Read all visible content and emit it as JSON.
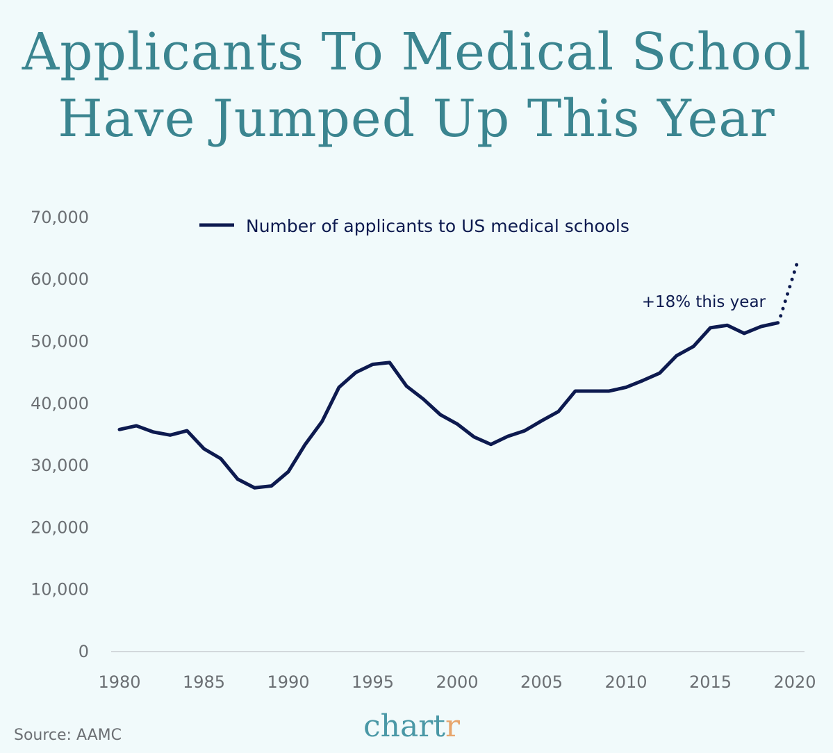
{
  "title_line1": "Applicants To Medical School",
  "title_line2": "Have Jumped Up This Year",
  "source": "Source: AAMC",
  "logo": {
    "main": "chart",
    "accent": "r"
  },
  "chart_data": {
    "type": "line",
    "title": "Applicants To Medical School Have Jumped Up This Year",
    "xlabel": "",
    "ylabel": "",
    "xlim": [
      1980,
      2020
    ],
    "ylim": [
      0,
      70000
    ],
    "x_ticks": [
      "1980",
      "1985",
      "1990",
      "1995",
      "2000",
      "2005",
      "2010",
      "2015",
      "2020"
    ],
    "y_ticks": [
      "0",
      "10,000",
      "20,000",
      "30,000",
      "40,000",
      "50,000",
      "60,000",
      "70,000"
    ],
    "grid": false,
    "legend": "top",
    "color": "#0d1a4f",
    "series": [
      {
        "name": "Number of applicants to US medical schools",
        "x": [
          1980,
          1981,
          1982,
          1983,
          1984,
          1985,
          1986,
          1987,
          1988,
          1989,
          1990,
          1991,
          1992,
          1993,
          1994,
          1995,
          1996,
          1997,
          1998,
          1999,
          2000,
          2001,
          2002,
          2003,
          2004,
          2005,
          2006,
          2007,
          2008,
          2009,
          2010,
          2011,
          2012,
          2013,
          2014,
          2015,
          2016,
          2017,
          2018,
          2019
        ],
        "values": [
          35800,
          36400,
          35400,
          34900,
          35600,
          32700,
          31100,
          27800,
          26400,
          26700,
          29000,
          33400,
          37100,
          42600,
          45000,
          46300,
          46600,
          42800,
          40700,
          38200,
          36700,
          34600,
          33400,
          34700,
          35600,
          37200,
          38700,
          42000,
          42000,
          42000,
          42600,
          43700,
          44900,
          47700,
          49200,
          52200,
          52600,
          51300,
          52400,
          53000
        ]
      }
    ],
    "projection": {
      "x": [
        2019,
        2020
      ],
      "values": [
        53000,
        62500
      ],
      "style": "dotted"
    },
    "annotation": "+18% this year"
  }
}
